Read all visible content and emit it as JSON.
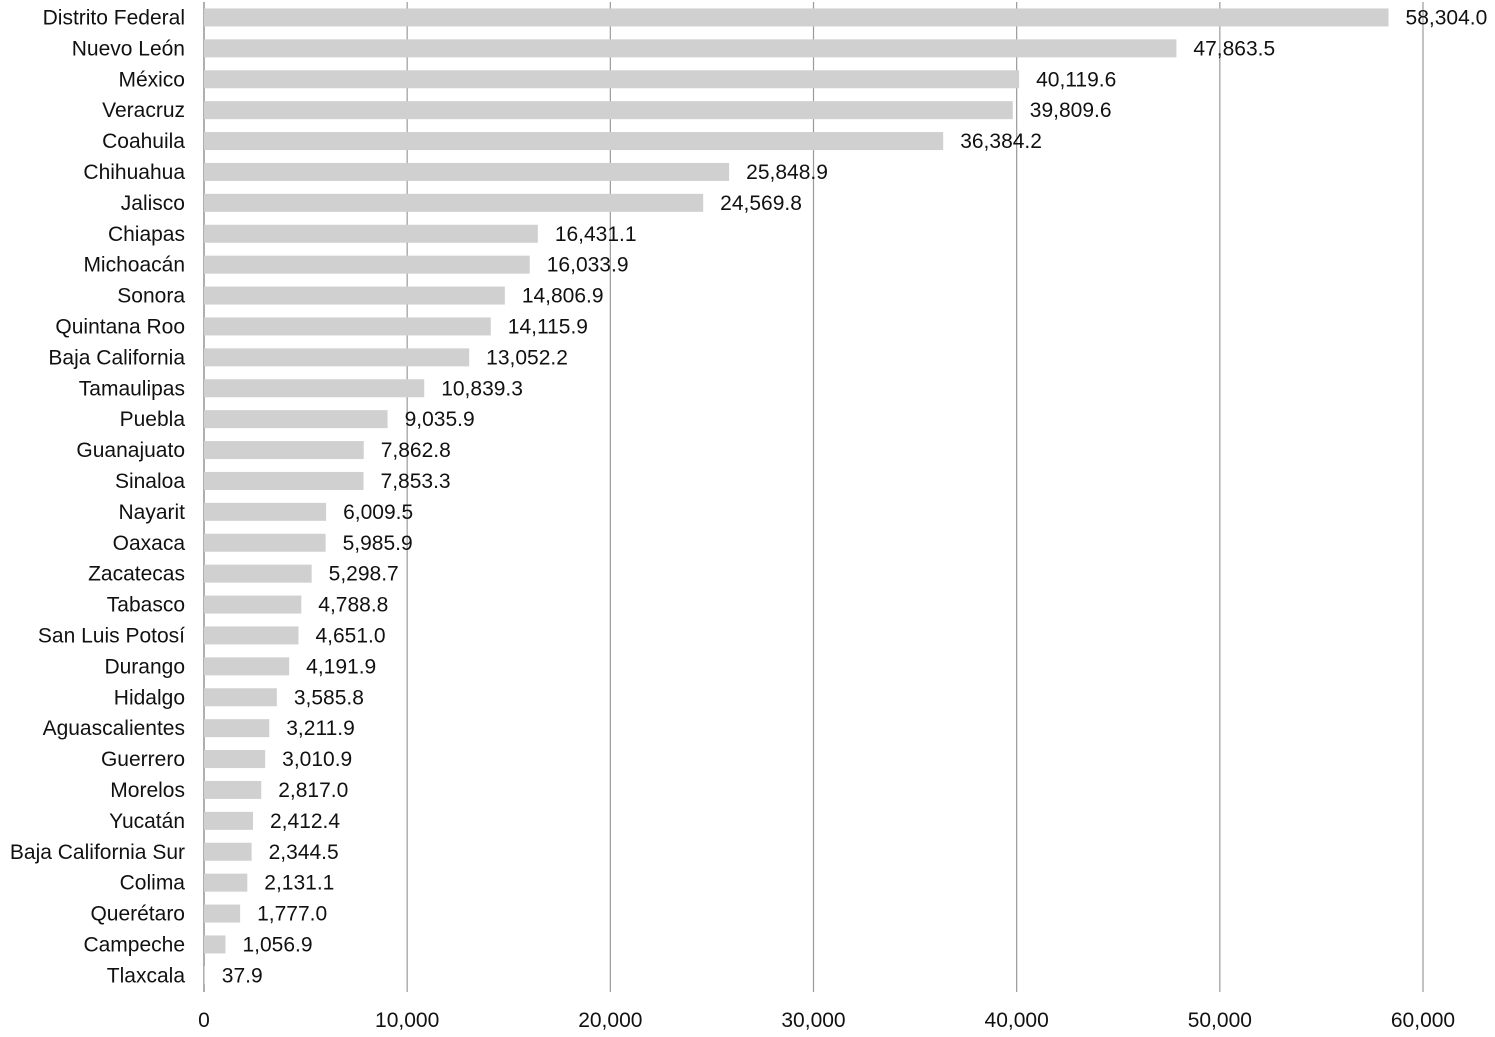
{
  "chart_data": {
    "type": "bar",
    "orientation": "horizontal",
    "title": "",
    "xlabel": "",
    "ylabel": "",
    "xlim": [
      0,
      60000
    ],
    "x_ticks": [
      0,
      10000,
      20000,
      30000,
      40000,
      50000,
      60000
    ],
    "x_tick_labels": [
      "0",
      "10,000",
      "20,000",
      "30,000",
      "40,000",
      "50,000",
      "60,000"
    ],
    "grid": "vertical",
    "legend": "none",
    "bar_color": "#d0d0d0",
    "grid_color": "#9a9a9a",
    "categories": [
      "Distrito Federal",
      "Nuevo León",
      "México",
      "Veracruz",
      "Coahuila",
      "Chihuahua",
      "Jalisco",
      "Chiapas",
      "Michoacán",
      "Sonora",
      "Quintana Roo",
      "Baja California",
      "Tamaulipas",
      "Puebla",
      "Guanajuato",
      "Sinaloa",
      "Nayarit",
      "Oaxaca",
      "Zacatecas",
      "Tabasco",
      "San Luis Potosí",
      "Durango",
      "Hidalgo",
      "Aguascalientes",
      "Guerrero",
      "Morelos",
      "Yucatán",
      "Baja California Sur",
      "Colima",
      "Querétaro",
      "Campeche",
      "Tlaxcala"
    ],
    "values": [
      58304.0,
      47863.5,
      40119.6,
      39809.6,
      36384.2,
      25848.9,
      24569.8,
      16431.1,
      16033.9,
      14806.9,
      14115.9,
      13052.2,
      10839.3,
      9035.9,
      7862.8,
      7853.3,
      6009.5,
      5985.9,
      5298.7,
      4788.8,
      4651.0,
      4191.9,
      3585.8,
      3211.9,
      3010.9,
      2817.0,
      2412.4,
      2344.5,
      2131.1,
      1777.0,
      1056.9,
      37.9
    ],
    "value_labels": [
      "58,304.0",
      "47,863.5",
      "40,119.6",
      "39,809.6",
      "36,384.2",
      "25,848.9",
      "24,569.8",
      "16,431.1",
      "16,033.9",
      "14,806.9",
      "14,115.9",
      "13,052.2",
      "10,839.3",
      "9,035.9",
      "7,862.8",
      "7,853.3",
      "6,009.5",
      "5,985.9",
      "5,298.7",
      "4,788.8",
      "4,651.0",
      "4,191.9",
      "3,585.8",
      "3,211.9",
      "3,010.9",
      "2,817.0",
      "2,412.4",
      "2,344.5",
      "2,131.1",
      "1,777.0",
      "1,056.9",
      "37.9"
    ]
  }
}
